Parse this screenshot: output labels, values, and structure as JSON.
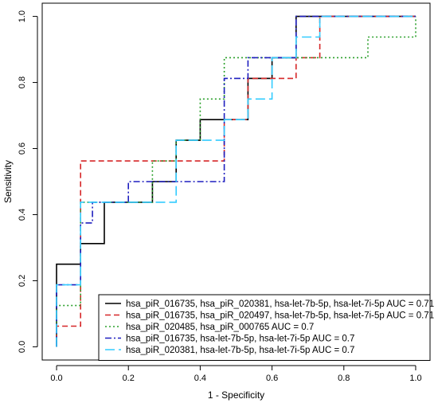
{
  "chart_data": {
    "type": "line",
    "title": "",
    "xlabel": "1 - Specificity",
    "ylabel": "Sensitivity",
    "xlim": [
      0,
      1
    ],
    "ylim": [
      0,
      1
    ],
    "x_ticks": [
      "0.0",
      "0.2",
      "0.4",
      "0.6",
      "0.8",
      "1.0"
    ],
    "y_ticks": [
      "0.0",
      "0.2",
      "0.4",
      "0.6",
      "0.8",
      "1.0"
    ],
    "grid": false,
    "legend_position": "bottom-right",
    "series": [
      {
        "name": "hsa_piR_016735, hsa_piR_020381, hsa-let-7b-5p, hsa-let-7i-5p AUC =  0.71",
        "color": "#000000",
        "dash": "solid",
        "points": [
          [
            0,
            0
          ],
          [
            0,
            0.25
          ],
          [
            0.067,
            0.25
          ],
          [
            0.067,
            0.3125
          ],
          [
            0.133,
            0.3125
          ],
          [
            0.133,
            0.4375
          ],
          [
            0.267,
            0.4375
          ],
          [
            0.267,
            0.5
          ],
          [
            0.333,
            0.5
          ],
          [
            0.333,
            0.625
          ],
          [
            0.4,
            0.625
          ],
          [
            0.4,
            0.6875
          ],
          [
            0.533,
            0.6875
          ],
          [
            0.533,
            0.8125
          ],
          [
            0.6,
            0.8125
          ],
          [
            0.6,
            0.875
          ],
          [
            0.667,
            0.875
          ],
          [
            0.667,
            1
          ],
          [
            1,
            1
          ]
        ]
      },
      {
        "name": "hsa_piR_016735, hsa_piR_020497, hsa-let-7b-5p, hsa-let-7i-5p AUC =  0.71",
        "color": "#d62728",
        "dash": "dashed",
        "points": [
          [
            0,
            0
          ],
          [
            0,
            0.0625
          ],
          [
            0.067,
            0.0625
          ],
          [
            0.067,
            0.5625
          ],
          [
            0.467,
            0.5625
          ],
          [
            0.467,
            0.6875
          ],
          [
            0.533,
            0.6875
          ],
          [
            0.533,
            0.8125
          ],
          [
            0.667,
            0.8125
          ],
          [
            0.667,
            0.875
          ],
          [
            0.733,
            0.875
          ],
          [
            0.733,
            1
          ],
          [
            1,
            1
          ]
        ]
      },
      {
        "name": "hsa_piR_020485, hsa_piR_000765 AUC =  0.7",
        "color": "#2ca02c",
        "dash": "dotted",
        "points": [
          [
            0,
            0
          ],
          [
            0,
            0.125
          ],
          [
            0.067,
            0.125
          ],
          [
            0.067,
            0.4375
          ],
          [
            0.2,
            0.4375
          ],
          [
            0.267,
            0.4375
          ],
          [
            0.267,
            0.5625
          ],
          [
            0.333,
            0.5625
          ],
          [
            0.333,
            0.625
          ],
          [
            0.4,
            0.625
          ],
          [
            0.4,
            0.75
          ],
          [
            0.467,
            0.75
          ],
          [
            0.467,
            0.875
          ],
          [
            0.867,
            0.875
          ],
          [
            0.867,
            0.9375
          ],
          [
            1,
            0.9375
          ],
          [
            1,
            1
          ]
        ]
      },
      {
        "name": "hsa_piR_016735, hsa-let-7b-5p, hsa-let-7i-5p AUC =  0.7",
        "color": "#1f1fbf",
        "dash": "dashdot",
        "points": [
          [
            0,
            0
          ],
          [
            0,
            0.1875
          ],
          [
            0.067,
            0.1875
          ],
          [
            0.067,
            0.375
          ],
          [
            0.1,
            0.375
          ],
          [
            0.1,
            0.4375
          ],
          [
            0.2,
            0.4375
          ],
          [
            0.2,
            0.5
          ],
          [
            0.467,
            0.5
          ],
          [
            0.467,
            0.6875
          ],
          [
            0.467,
            0.75
          ],
          [
            0.467,
            0.8125
          ],
          [
            0.533,
            0.8125
          ],
          [
            0.533,
            0.875
          ],
          [
            0.667,
            0.875
          ],
          [
            0.667,
            1
          ],
          [
            1,
            1
          ]
        ]
      },
      {
        "name": "hsa_piR_020381, hsa-let-7b-5p, hsa-let-7i-5p AUC =  0.7",
        "color": "#33ccff",
        "dash": "longdash",
        "points": [
          [
            0,
            0
          ],
          [
            0,
            0.1875
          ],
          [
            0.067,
            0.1875
          ],
          [
            0.067,
            0.4375
          ],
          [
            0.333,
            0.4375
          ],
          [
            0.333,
            0.625
          ],
          [
            0.467,
            0.625
          ],
          [
            0.467,
            0.6875
          ],
          [
            0.533,
            0.6875
          ],
          [
            0.533,
            0.75
          ],
          [
            0.6,
            0.75
          ],
          [
            0.6,
            0.875
          ],
          [
            0.667,
            0.875
          ],
          [
            0.667,
            0.9375
          ],
          [
            0.733,
            0.9375
          ],
          [
            0.733,
            1
          ],
          [
            1,
            1
          ]
        ]
      }
    ]
  }
}
